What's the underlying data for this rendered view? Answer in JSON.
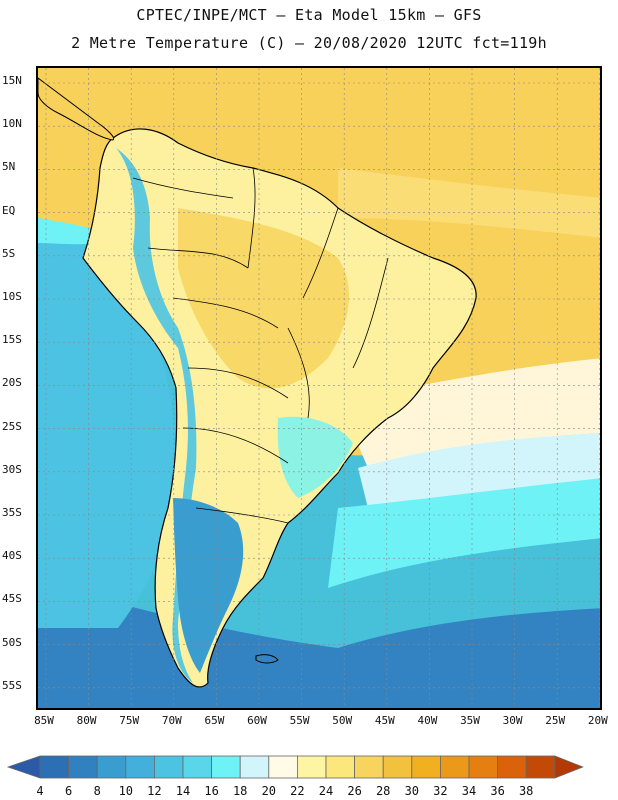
{
  "header": {
    "line1": "CPTEC/INPE/MCT –  Eta Model 15km – GFS",
    "line2": "2 Metre Temperature (C) – 20/08/2020 12UTC fct=119h"
  },
  "map": {
    "lat_labels": [
      "15N",
      "10N",
      "5N",
      "EQ",
      "5S",
      "10S",
      "15S",
      "20S",
      "25S",
      "30S",
      "35S",
      "40S",
      "45S",
      "50S",
      "55S"
    ],
    "lon_labels": [
      "85W",
      "80W",
      "75W",
      "70W",
      "65W",
      "60W",
      "55W",
      "50W",
      "45W",
      "40W",
      "35W",
      "30W",
      "25W",
      "20W"
    ],
    "lat_range": [
      17,
      -58
    ],
    "lon_range": [
      -86,
      -20
    ],
    "colors": {
      "warm": "#f7d15a",
      "warm_light": "#fbe07d",
      "cream": "#fff6d9",
      "pale_yellow": "#fdf1a0",
      "ocean_mid": "#46c1d9",
      "ocean_cyan": "#69eef5",
      "ocean_deep": "#3383c2",
      "ocean_blue": "#3a9dcf",
      "coast": "#000000",
      "grid": "#888888"
    }
  },
  "colorbar": {
    "labels": [
      "4",
      "6",
      "8",
      "10",
      "12",
      "14",
      "16",
      "18",
      "20",
      "22",
      "24",
      "26",
      "28",
      "30",
      "32",
      "34",
      "36",
      "38"
    ],
    "colors": [
      "#2c6fb4",
      "#3181c1",
      "#3a9dcf",
      "#43b0db",
      "#4cc3e2",
      "#5ad6ea",
      "#6ef2f5",
      "#d2f5fb",
      "#fffbe6",
      "#fdf5a3",
      "#fbe77b",
      "#f7d45d",
      "#f2c23e",
      "#f0b020",
      "#ea9a18",
      "#e57f12",
      "#d9620a",
      "#c24a06"
    ],
    "left_cap": "#2b5aa8",
    "right_cap": "#b33a05"
  }
}
